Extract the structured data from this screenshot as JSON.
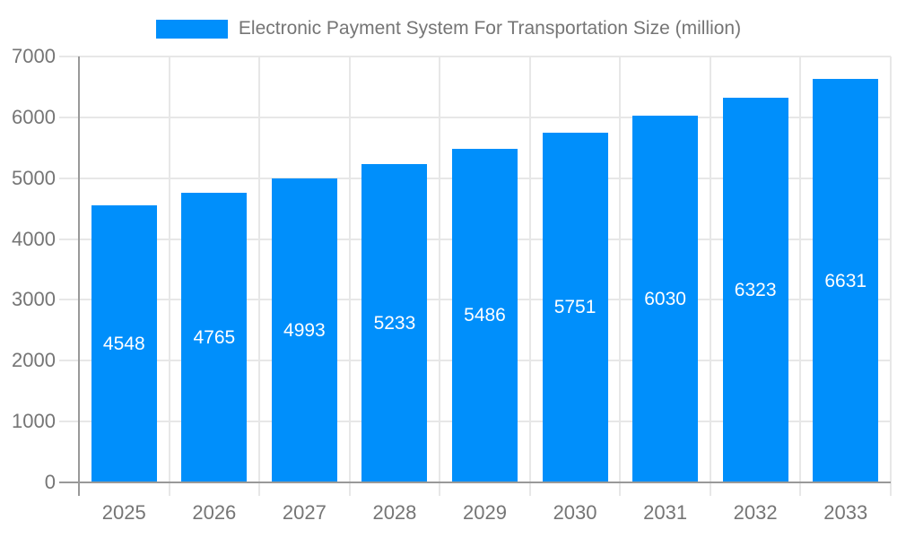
{
  "chart_data": {
    "type": "bar",
    "title": "Electronic Payment System For Transportation Size (million)",
    "legend": {
      "position": "top",
      "entries": [
        {
          "label": "Electronic Payment System For Transportation Size (million)",
          "color": "#008FFB"
        }
      ]
    },
    "categories": [
      "2025",
      "2026",
      "2027",
      "2028",
      "2029",
      "2030",
      "2031",
      "2032",
      "2033"
    ],
    "series": [
      {
        "name": "Electronic Payment System For Transportation Size (million)",
        "values": [
          4548,
          4765,
          4993,
          5233,
          5486,
          5751,
          6030,
          6323,
          6631
        ]
      }
    ],
    "value_labels": [
      "4548",
      "4765",
      "4993",
      "5233",
      "5486",
      "5751",
      "6030",
      "6323",
      "6631"
    ],
    "xlabel": "",
    "ylabel": "",
    "ylim": [
      0,
      7000
    ],
    "ytick_interval": 1000,
    "ytick_labels": [
      "0",
      "1000",
      "2000",
      "3000",
      "4000",
      "5000",
      "6000",
      "7000"
    ],
    "grid": true,
    "colors": {
      "bar": "#008FFB",
      "grid_line": "#e7e7e7",
      "axis_line": "#999999",
      "tick_label": "#757575",
      "legend_text": "#757575",
      "value_label": "#ffffff",
      "background": "#ffffff"
    }
  }
}
